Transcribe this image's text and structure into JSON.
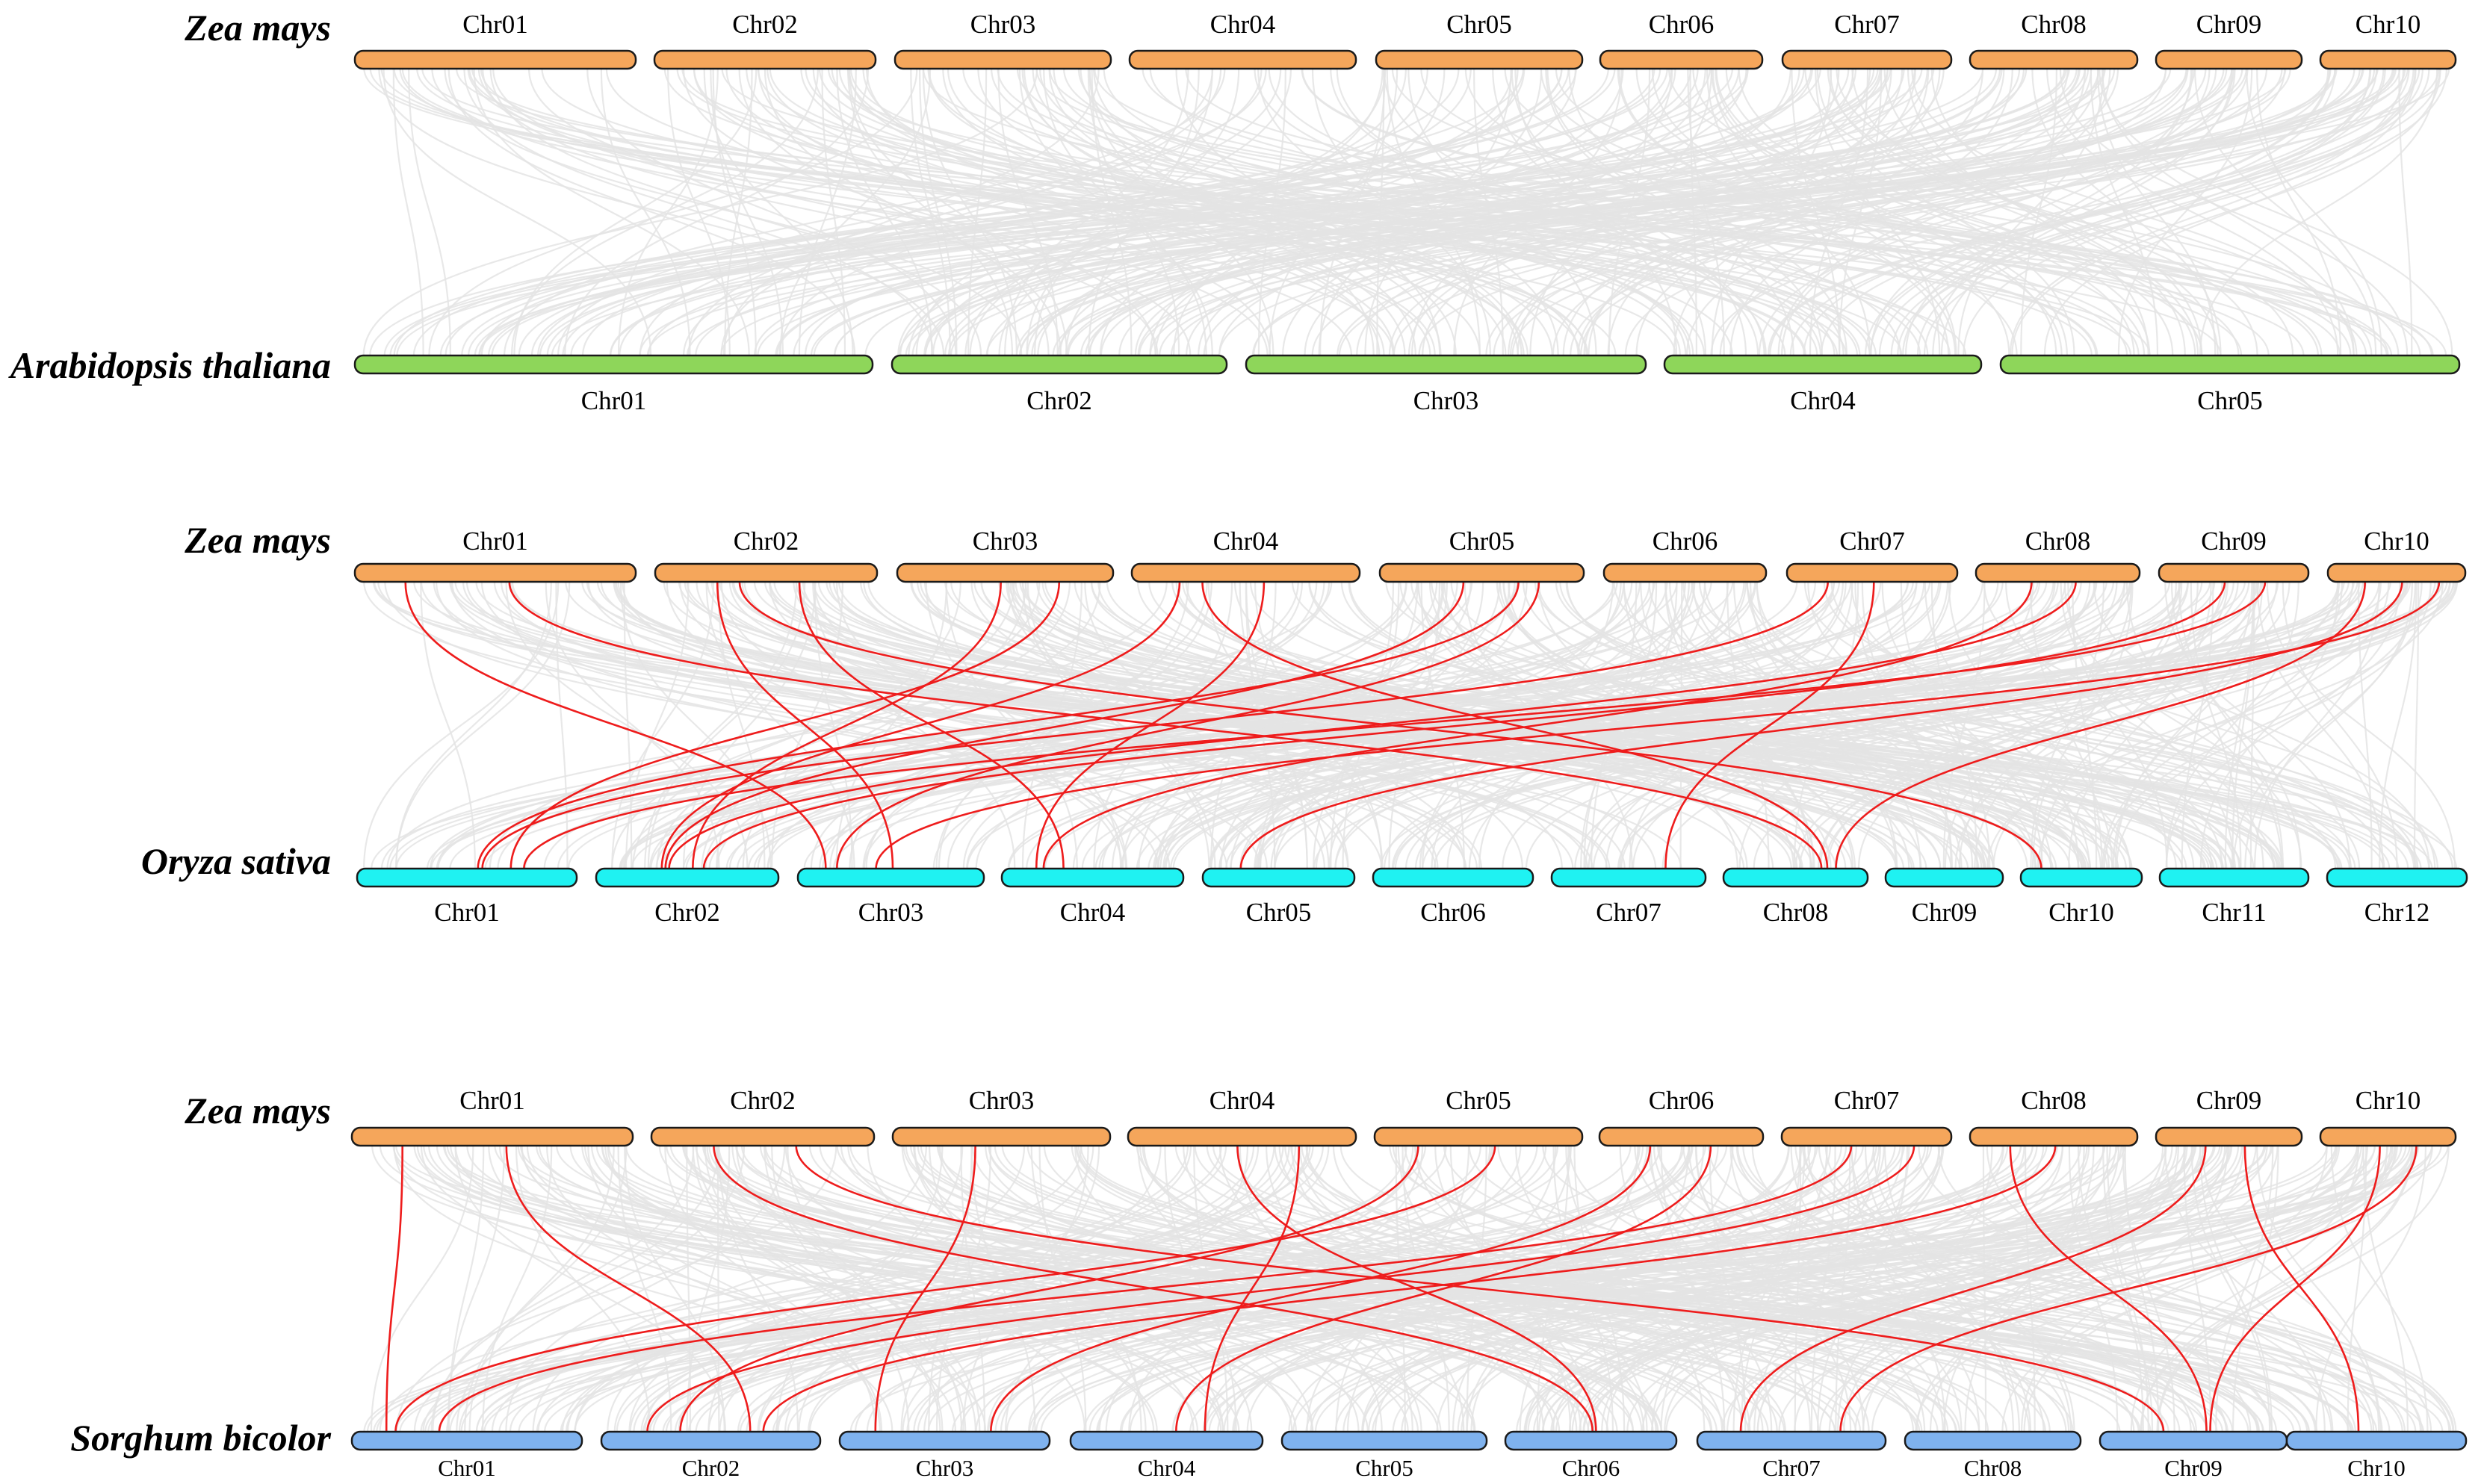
{
  "colors": {
    "zea": "#f5a65b",
    "arabidopsis": "#8ed65a",
    "oryza": "#1ff2f2",
    "sorghum": "#7fb2ee",
    "background_links": "#e4e4e4",
    "highlight_links": "#ee1c1c"
  },
  "panels": [
    {
      "name": "zea-arabidopsis",
      "top": {
        "species": "Zea mays",
        "chromosomes": [
          "Chr01",
          "Chr02",
          "Chr03",
          "Chr04",
          "Chr05",
          "Chr06",
          "Chr07",
          "Chr08",
          "Chr09",
          "Chr10"
        ]
      },
      "bottom": {
        "species": "Arabidopsis thaliana",
        "chromosomes": [
          "Chr01",
          "Chr02",
          "Chr03",
          "Chr04",
          "Chr05"
        ]
      },
      "highlight_links": []
    },
    {
      "name": "zea-oryza",
      "top": {
        "species": "Zea mays",
        "chromosomes": [
          "Chr01",
          "Chr02",
          "Chr03",
          "Chr04",
          "Chr05",
          "Chr06",
          "Chr07",
          "Chr08",
          "Chr09",
          "Chr10"
        ]
      },
      "bottom": {
        "species": "Oryza sativa",
        "chromosomes": [
          "Chr01",
          "Chr02",
          "Chr03",
          "Chr04",
          "Chr05",
          "Chr06",
          "Chr07",
          "Chr08",
          "Chr09",
          "Chr10",
          "Chr11",
          "Chr12"
        ]
      },
      "highlight_links": [
        [
          "Chr01",
          "Chr03"
        ],
        [
          "Chr01",
          "Chr08"
        ],
        [
          "Chr02",
          "Chr03"
        ],
        [
          "Chr02",
          "Chr04"
        ],
        [
          "Chr02",
          "Chr10"
        ],
        [
          "Chr03",
          "Chr01"
        ],
        [
          "Chr03",
          "Chr02"
        ],
        [
          "Chr04",
          "Chr02"
        ],
        [
          "Chr04",
          "Chr04"
        ],
        [
          "Chr04",
          "Chr08"
        ],
        [
          "Chr05",
          "Chr01"
        ],
        [
          "Chr05",
          "Chr02"
        ],
        [
          "Chr05",
          "Chr03"
        ],
        [
          "Chr07",
          "Chr07"
        ],
        [
          "Chr07",
          "Chr01"
        ],
        [
          "Chr08",
          "Chr02"
        ],
        [
          "Chr08",
          "Chr04"
        ],
        [
          "Chr09",
          "Chr01"
        ],
        [
          "Chr09",
          "Chr02"
        ],
        [
          "Chr10",
          "Chr03"
        ],
        [
          "Chr10",
          "Chr05"
        ],
        [
          "Chr10",
          "Chr08"
        ]
      ]
    },
    {
      "name": "zea-sorghum",
      "top": {
        "species": "Zea mays",
        "chromosomes": [
          "Chr01",
          "Chr02",
          "Chr03",
          "Chr04",
          "Chr05",
          "Chr06",
          "Chr07",
          "Chr08",
          "Chr09",
          "Chr10"
        ]
      },
      "bottom": {
        "species": "Sorghum bicolor",
        "chromosomes": [
          "Chr01",
          "Chr02",
          "Chr03",
          "Chr04",
          "Chr05",
          "Chr06",
          "Chr07",
          "Chr08",
          "Chr09",
          "Chr10"
        ]
      },
      "highlight_links": [
        [
          "Chr01",
          "Chr01"
        ],
        [
          "Chr01",
          "Chr02"
        ],
        [
          "Chr02",
          "Chr06"
        ],
        [
          "Chr02",
          "Chr09"
        ],
        [
          "Chr03",
          "Chr03"
        ],
        [
          "Chr04",
          "Chr04"
        ],
        [
          "Chr04",
          "Chr06"
        ],
        [
          "Chr05",
          "Chr02"
        ],
        [
          "Chr05",
          "Chr01"
        ],
        [
          "Chr06",
          "Chr03"
        ],
        [
          "Chr06",
          "Chr04"
        ],
        [
          "Chr07",
          "Chr01"
        ],
        [
          "Chr07",
          "Chr02"
        ],
        [
          "Chr08",
          "Chr02"
        ],
        [
          "Chr08",
          "Chr09"
        ],
        [
          "Chr09",
          "Chr10"
        ],
        [
          "Chr09",
          "Chr07"
        ],
        [
          "Chr10",
          "Chr07"
        ],
        [
          "Chr10",
          "Chr09"
        ]
      ]
    }
  ]
}
